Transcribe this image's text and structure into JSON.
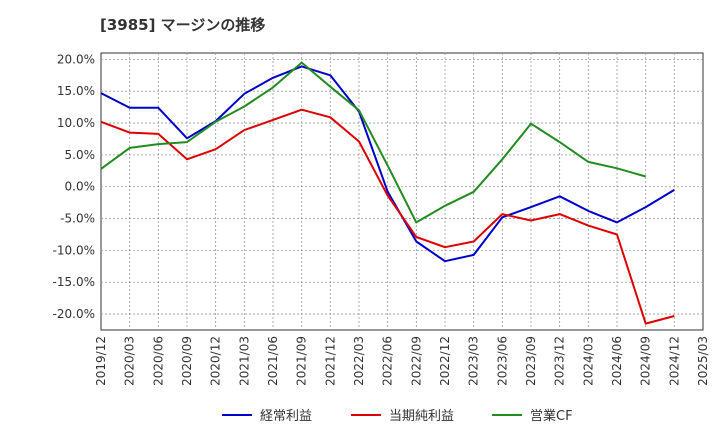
{
  "chart_data": {
    "type": "line",
    "title": "[3985]  マージンの推移",
    "categories": [
      "2019/12",
      "2020/03",
      "2020/06",
      "2020/09",
      "2020/12",
      "2021/03",
      "2021/06",
      "2021/09",
      "2021/12",
      "2022/03",
      "2022/06",
      "2022/09",
      "2022/12",
      "2023/03",
      "2023/06",
      "2023/09",
      "2023/12",
      "2024/03",
      "2024/06",
      "2024/09",
      "2024/12",
      "2025/03"
    ],
    "y_ticks": [
      "20.0%",
      "15.0%",
      "10.0%",
      "5.0%",
      "0.0%",
      "-5.0%",
      "-10.0%",
      "-15.0%",
      "-20.0%"
    ],
    "ylim": [
      -22.5,
      21.0
    ],
    "grid": true,
    "legend_position": "bottom",
    "series": [
      {
        "name": "経常利益",
        "color": "#0000cc",
        "values": [
          14.7,
          12.4,
          12.4,
          7.6,
          10.3,
          14.6,
          17.1,
          18.9,
          17.5,
          11.8,
          -0.8,
          -8.6,
          -11.7,
          -10.7,
          -4.8,
          -3.2,
          -1.5,
          -3.8,
          -5.6,
          -3.2,
          -0.5,
          null
        ]
      },
      {
        "name": "当期純利益",
        "color": "#dd0000",
        "values": [
          10.2,
          8.5,
          8.3,
          4.3,
          5.9,
          8.9,
          10.5,
          12.1,
          10.9,
          7.1,
          -1.4,
          -7.9,
          -9.5,
          -8.6,
          -4.3,
          -5.3,
          -4.3,
          -6.1,
          -7.5,
          -21.5,
          -20.3,
          null
        ]
      },
      {
        "name": "営業CF",
        "color": "#228b22",
        "values": [
          2.8,
          6.1,
          6.7,
          7.0,
          10.2,
          12.6,
          15.6,
          19.5,
          15.7,
          12.0,
          3.3,
          -5.6,
          -3.0,
          -0.8,
          4.3,
          9.9,
          7.0,
          3.9,
          2.9,
          1.6,
          null,
          null
        ]
      }
    ]
  }
}
